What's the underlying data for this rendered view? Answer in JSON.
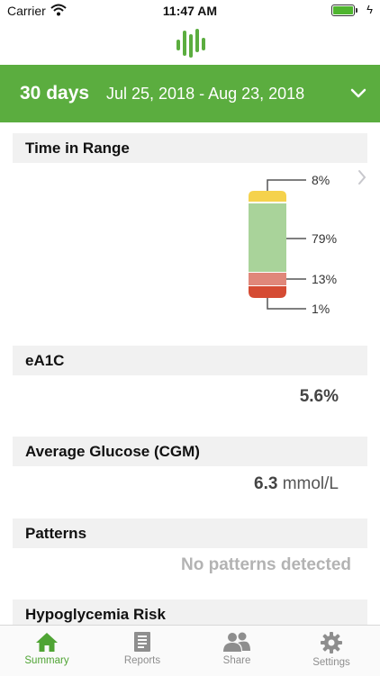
{
  "status_bar": {
    "carrier": "Carrier",
    "time": "11:47 AM"
  },
  "banner": {
    "days": "30 days",
    "range": "Jul 25, 2018 - Aug 23, 2018"
  },
  "sections": {
    "time_in_range": {
      "title": "Time in Range",
      "bands": [
        {
          "label": "8%",
          "percent": 8,
          "color": "#f5d24c"
        },
        {
          "label": "79%",
          "percent": 79,
          "color": "#a9d39a"
        },
        {
          "label": "13%",
          "percent": 13,
          "color": "#e0877a"
        },
        {
          "label": "1%",
          "percent": 1,
          "color": "#d54b33"
        }
      ]
    },
    "ea1c": {
      "title": "eA1C",
      "value": "5.6%"
    },
    "avg_glucose": {
      "title": "Average Glucose (CGM)",
      "value": "6.3",
      "unit": "mmol/L"
    },
    "patterns": {
      "title": "Patterns",
      "value": "No patterns detected"
    },
    "hypo_risk": {
      "title": "Hypoglycemia Risk"
    }
  },
  "tabs": [
    {
      "label": "Summary",
      "icon": "home-icon",
      "active": true
    },
    {
      "label": "Reports",
      "icon": "document-icon",
      "active": false
    },
    {
      "label": "Share",
      "icon": "people-icon",
      "active": false
    },
    {
      "label": "Settings",
      "icon": "gear-icon",
      "active": false
    }
  ],
  "colors": {
    "brand_green": "#5bad3f",
    "active_tab": "#4fa434",
    "inactive_tab": "#8e8e8e"
  }
}
